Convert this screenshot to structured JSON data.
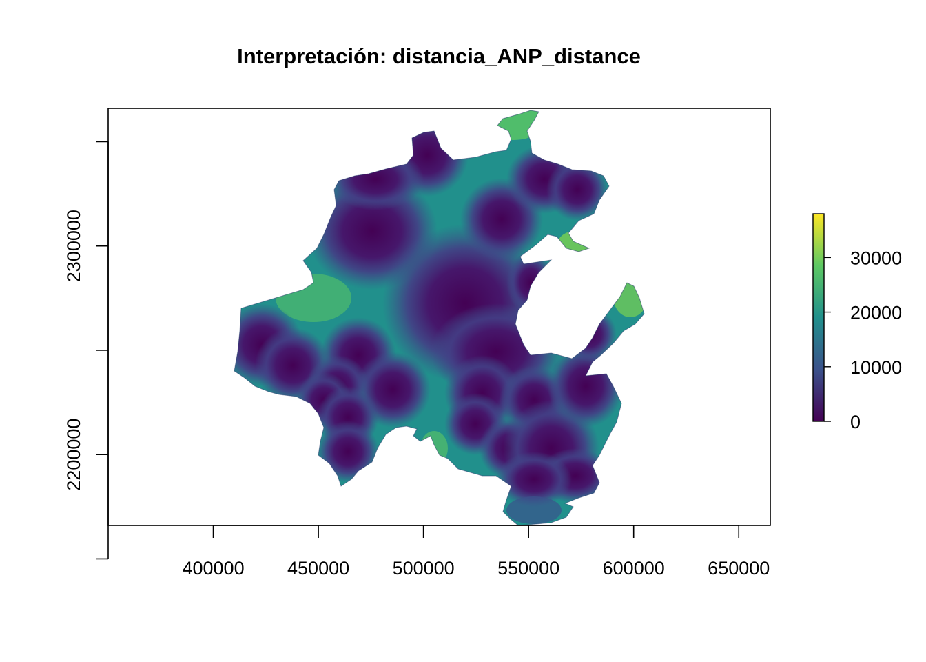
{
  "title": "Interpretación:  distancia_ANP_distance",
  "map": {
    "x_ticks": [
      400000,
      450000,
      500000,
      550000,
      600000,
      650000
    ],
    "y_ticks": [
      2200000,
      2300000
    ],
    "x_range": [
      350000,
      665000
    ],
    "y_range": [
      2166000,
      2366000
    ]
  },
  "legend": {
    "ticks": [
      0,
      10000,
      20000,
      30000
    ],
    "range": [
      0,
      38000
    ],
    "colors": [
      "#440154",
      "#3b528b",
      "#21908c",
      "#5dc863",
      "#fde725"
    ]
  }
}
